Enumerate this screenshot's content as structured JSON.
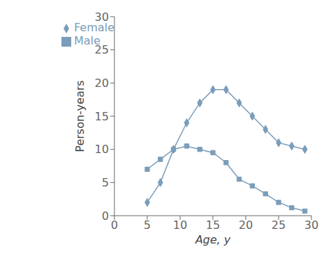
{
  "chart_data": {
    "type": "line",
    "x": [
      5,
      7,
      9,
      11,
      13,
      15,
      17,
      19,
      21,
      23,
      25,
      27,
      29
    ],
    "series": [
      {
        "name": "Female",
        "color": "#7a9dba",
        "marker": "diamond",
        "values": [
          2,
          5,
          10,
          14,
          17,
          19,
          19,
          17,
          15,
          13,
          11,
          10.5,
          10
        ]
      },
      {
        "name": "Male",
        "color": "#7a9dba",
        "marker": "square",
        "values": [
          7,
          8.5,
          10,
          10.5,
          10,
          9.5,
          8,
          5.5,
          4.5,
          3.3,
          2,
          1.2,
          0.7
        ]
      }
    ],
    "xlabel": "Age, y",
    "ylabel": "Person-years",
    "xlim": [
      0,
      30
    ],
    "ylim": [
      0,
      30
    ],
    "xticks": [
      0,
      5,
      10,
      15,
      20,
      25,
      30
    ],
    "yticks": [
      0,
      5,
      10,
      15,
      20,
      25,
      30
    ],
    "grid": false,
    "legend": "upper left"
  }
}
